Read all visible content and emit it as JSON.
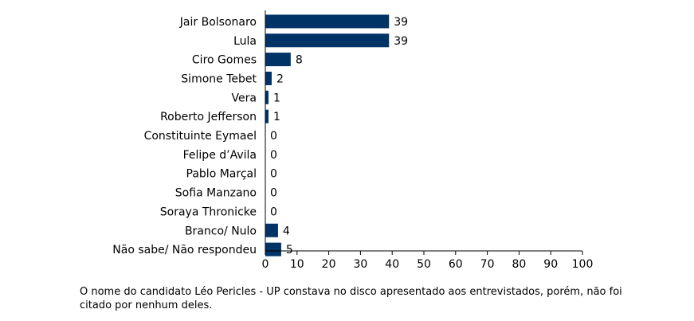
{
  "chart_data": {
    "type": "bar",
    "orientation": "horizontal",
    "categories": [
      "Jair Bolsonaro",
      "Lula",
      "Ciro Gomes",
      "Simone Tebet",
      "Vera",
      "Roberto Jefferson",
      "Constituinte Eymael",
      "Felipe d’Avila",
      "Pablo Marçal",
      "Sofia Manzano",
      "Soraya Thronicke",
      "Branco/ Nulo",
      "Não sabe/ Não respondeu"
    ],
    "values": [
      39,
      39,
      8,
      2,
      1,
      1,
      0,
      0,
      0,
      0,
      0,
      4,
      5
    ],
    "xlim": [
      0,
      100
    ],
    "xticks": [
      0,
      10,
      20,
      30,
      40,
      50,
      60,
      70,
      80,
      90,
      100
    ],
    "bar_color": "#003366",
    "grid": false,
    "data_labels": true
  },
  "footnote": "O nome do candidato Léo Pericles - UP constava no disco apresentado aos entrevistados, porém, não foi citado por nenhum deles."
}
